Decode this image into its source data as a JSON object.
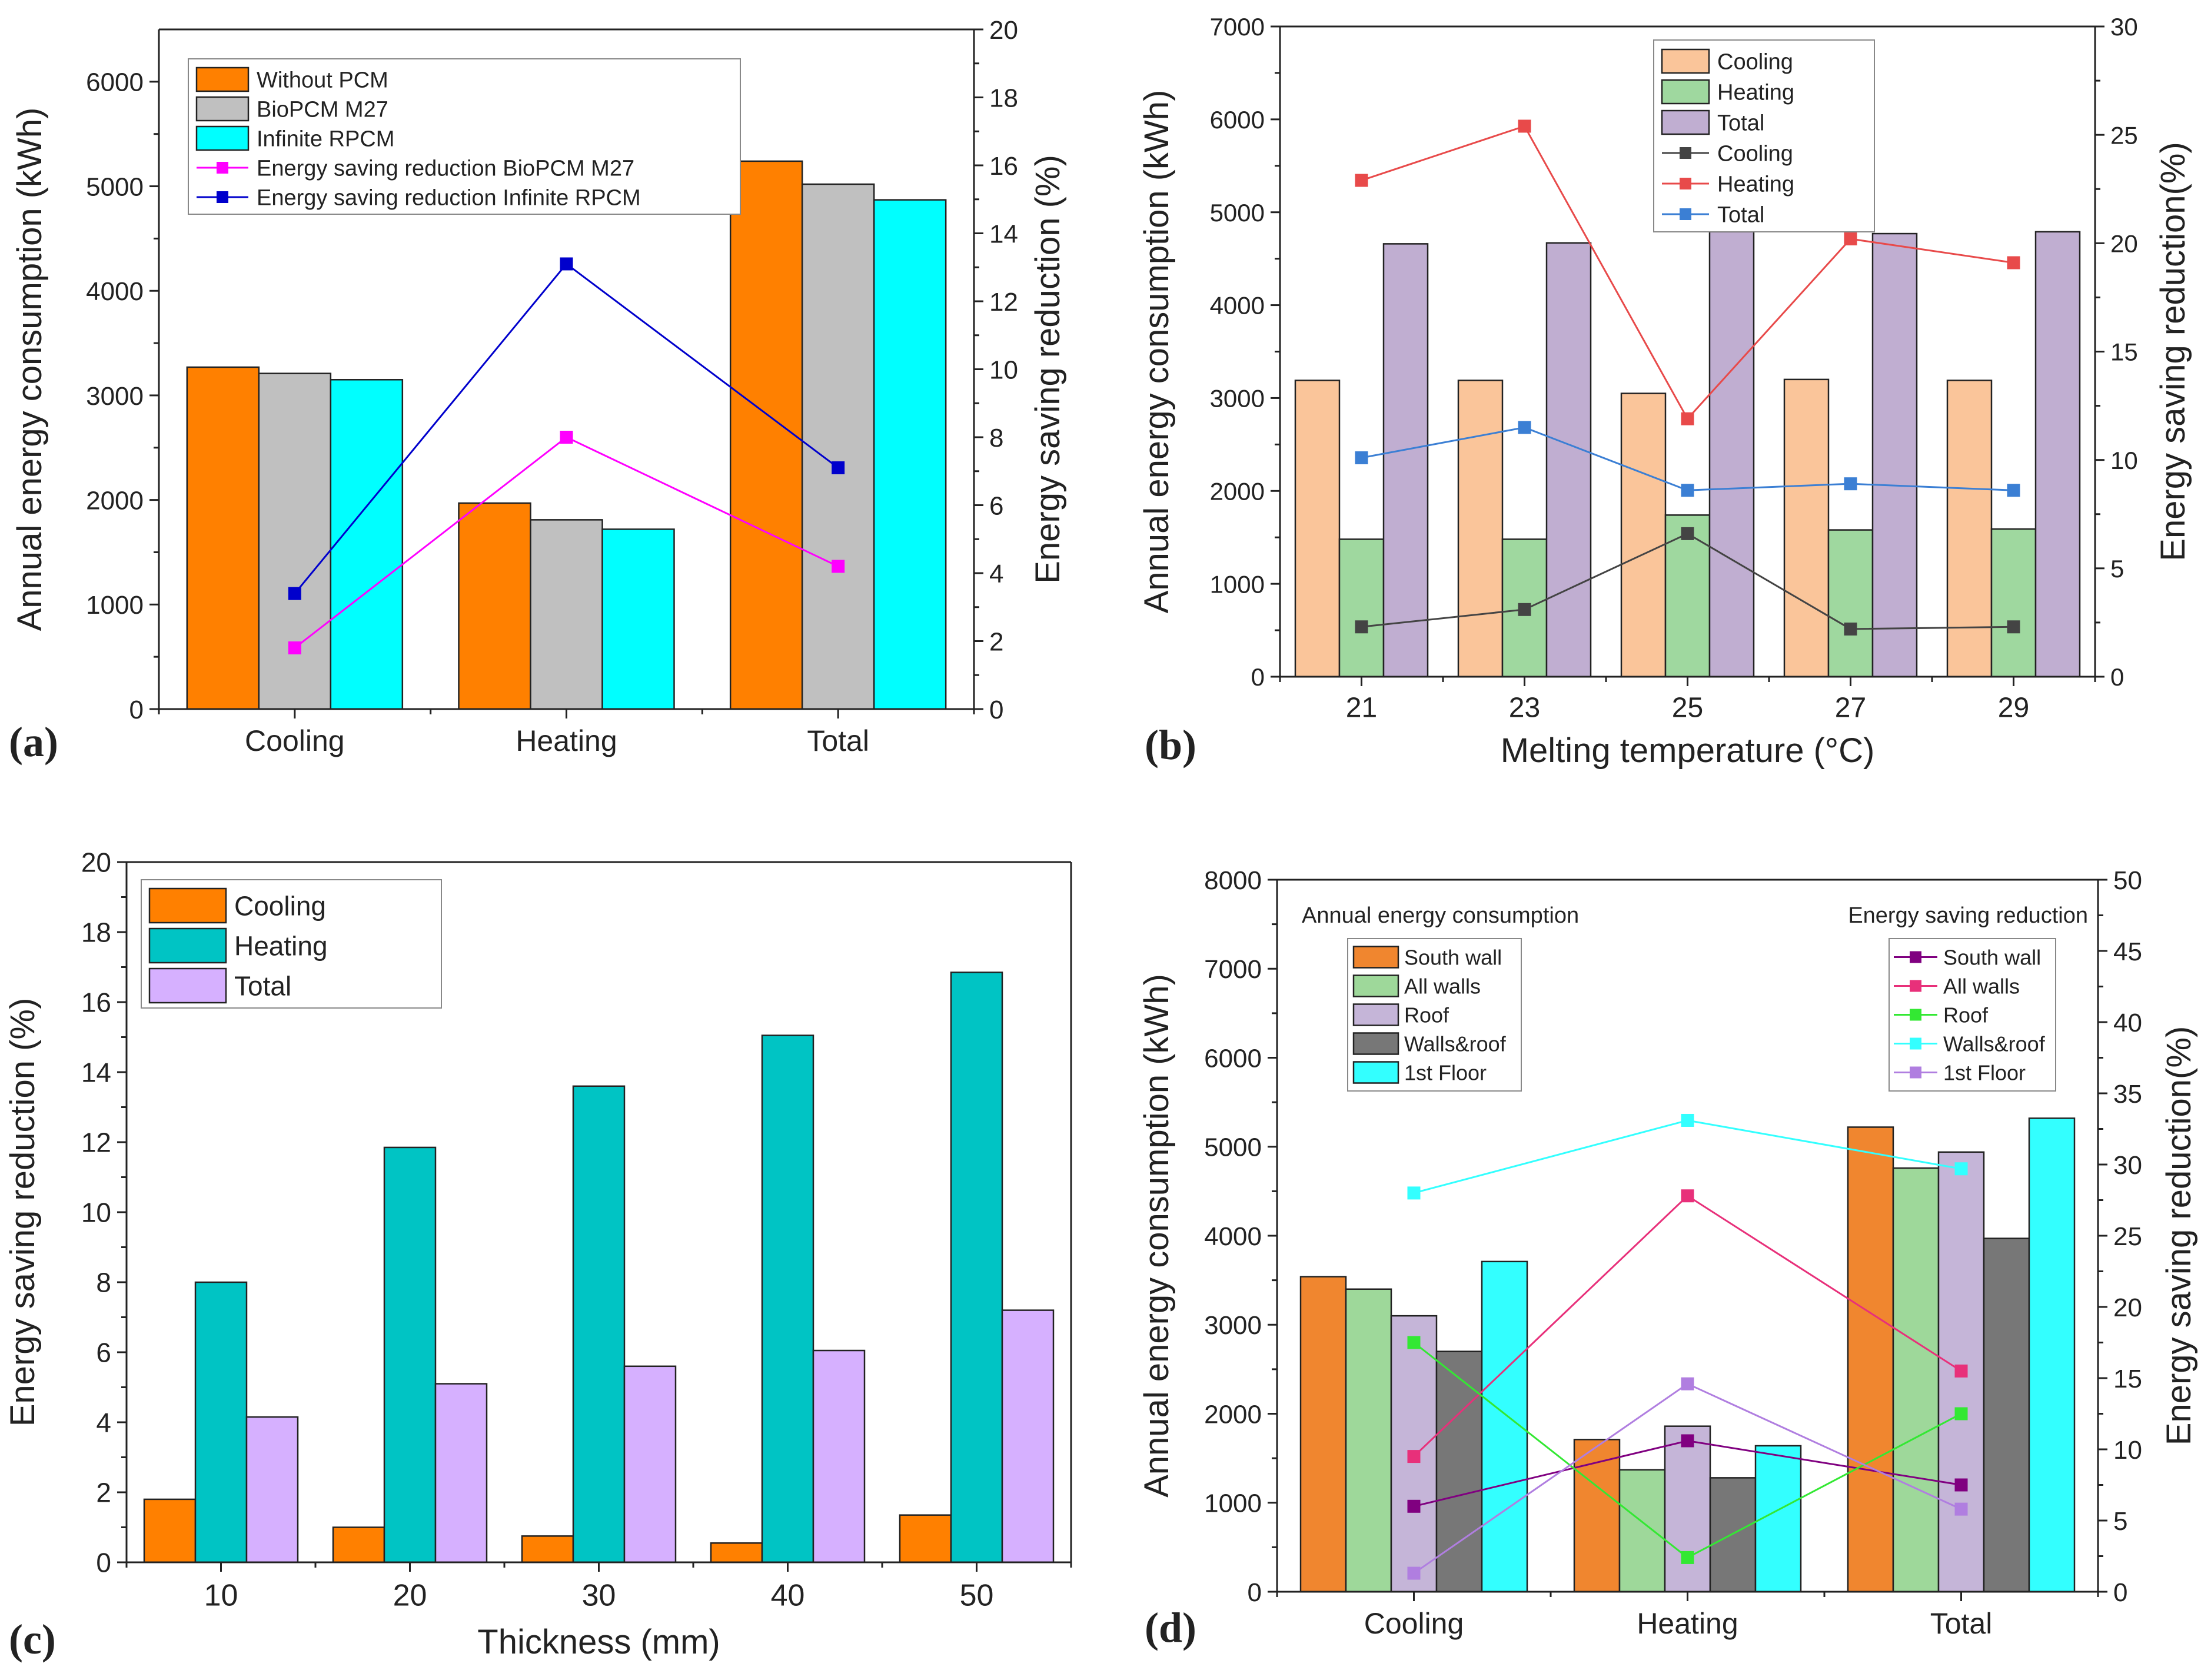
{
  "chart_data": [
    {
      "id": "a",
      "panel_label": "(a)",
      "type": "bar",
      "categories": [
        "Cooling",
        "Heating",
        "Total"
      ],
      "ylabel": "Annual energy consumption (kWh)",
      "y2label": "Energy saving reduction (%)",
      "ylim": [
        0,
        6500
      ],
      "yticks": [
        0,
        1000,
        2000,
        3000,
        4000,
        5000,
        6000
      ],
      "y2lim": [
        0,
        20
      ],
      "y2ticks": [
        0,
        2,
        4,
        6,
        8,
        10,
        12,
        14,
        16,
        18,
        20
      ],
      "legend_position": "top-left",
      "series": [
        {
          "name": "Without PCM",
          "kind": "bar",
          "color": "#ff8000",
          "values": [
            3270,
            1970,
            5240
          ]
        },
        {
          "name": "BioPCM M27",
          "kind": "bar",
          "color": "#c0c0c0",
          "values": [
            3210,
            1810,
            5020
          ]
        },
        {
          "name": "Infinite RPCM",
          "kind": "bar",
          "color": "#00ffff",
          "values": [
            3150,
            1720,
            4870
          ]
        },
        {
          "name": "Energy saving reduction BioPCM M27",
          "kind": "line",
          "axis": "right",
          "color": "#ff00ff",
          "values": [
            1.8,
            8.0,
            4.2
          ]
        },
        {
          "name": "Energy saving reduction Infinite RPCM",
          "kind": "line",
          "axis": "right",
          "color": "#0000cc",
          "values": [
            3.4,
            13.1,
            7.1
          ]
        }
      ]
    },
    {
      "id": "b",
      "panel_label": "(b)",
      "type": "bar",
      "categories": [
        "21",
        "23",
        "25",
        "27",
        "29"
      ],
      "xlabel": "Melting temperature (°C)",
      "ylabel": "Annual energy consumption (kWh)",
      "y2label": "Energy saving reduction(%)",
      "ylim": [
        0,
        7000
      ],
      "yticks": [
        0,
        1000,
        2000,
        3000,
        4000,
        5000,
        6000,
        7000
      ],
      "y2lim": [
        0,
        30
      ],
      "y2ticks": [
        0,
        5,
        10,
        15,
        20,
        25,
        30
      ],
      "legend_position": "top-center",
      "series": [
        {
          "name": "Cooling",
          "kind": "bar",
          "color": "#fac59a",
          "values": [
            3190,
            3190,
            3050,
            3200,
            3190
          ]
        },
        {
          "name": "Heating",
          "kind": "bar",
          "color": "#9fd89f",
          "values": [
            1480,
            1480,
            1740,
            1580,
            1590
          ]
        },
        {
          "name": "Total",
          "kind": "bar",
          "color": "#c0aed1",
          "values": [
            4660,
            4670,
            4790,
            4770,
            4790
          ]
        },
        {
          "name": "Cooling",
          "kind": "line",
          "axis": "right",
          "color": "#444444",
          "values": [
            2.3,
            3.1,
            6.6,
            2.2,
            2.3
          ]
        },
        {
          "name": "Heating",
          "kind": "line",
          "axis": "right",
          "color": "#e84a4a",
          "values": [
            22.9,
            25.4,
            11.9,
            20.2,
            19.1
          ]
        },
        {
          "name": "Total",
          "kind": "line",
          "axis": "right",
          "color": "#3b7fd4",
          "values": [
            10.1,
            11.5,
            8.6,
            8.9,
            8.6
          ]
        }
      ]
    },
    {
      "id": "c",
      "panel_label": "(c)",
      "type": "bar",
      "categories": [
        "10",
        "20",
        "30",
        "40",
        "50"
      ],
      "xlabel": "Thickness (mm)",
      "ylabel": "Energy saving reduction (%)",
      "ylim": [
        0,
        20
      ],
      "yticks": [
        0,
        2,
        4,
        6,
        8,
        10,
        12,
        14,
        16,
        18,
        20
      ],
      "legend_position": "top-left",
      "series": [
        {
          "name": "Cooling",
          "kind": "bar",
          "color": "#ff8000",
          "values": [
            1.8,
            1.0,
            0.75,
            0.55,
            1.35
          ]
        },
        {
          "name": "Heating",
          "kind": "bar",
          "color": "#00c4c4",
          "values": [
            8.0,
            11.85,
            13.6,
            15.05,
            16.85
          ]
        },
        {
          "name": "Total",
          "kind": "bar",
          "color": "#d6b0ff",
          "values": [
            4.15,
            5.1,
            5.6,
            6.05,
            7.2
          ]
        }
      ]
    },
    {
      "id": "d",
      "panel_label": "(d)",
      "type": "bar",
      "categories": [
        "Cooling",
        "Heating",
        "Total"
      ],
      "ylabel": "Annual energy consumption (kWh)",
      "y2label": "Energy saving reduction(%)",
      "ylim": [
        0,
        8000
      ],
      "yticks": [
        0,
        1000,
        2000,
        3000,
        4000,
        5000,
        6000,
        7000,
        8000
      ],
      "y2lim": [
        0,
        50
      ],
      "y2ticks": [
        0,
        5,
        10,
        15,
        20,
        25,
        30,
        35,
        40,
        45,
        50
      ],
      "annotations": [
        "Annual energy consumption",
        "Energy saving reduction"
      ],
      "legend_position": "top-left and top-right",
      "series": [
        {
          "name": "South wall",
          "kind": "bar",
          "color": "#f0862f",
          "values": [
            3540,
            1710,
            5220
          ]
        },
        {
          "name": "All walls",
          "kind": "bar",
          "color": "#9ed89a",
          "values": [
            3400,
            1370,
            4760
          ]
        },
        {
          "name": "Roof",
          "kind": "bar",
          "color": "#c5b5d8",
          "values": [
            3100,
            1860,
            4940
          ]
        },
        {
          "name": "Walls&roof",
          "kind": "bar",
          "color": "#777777",
          "values": [
            2700,
            1280,
            3970
          ]
        },
        {
          "name": "1st Floor",
          "kind": "bar",
          "color": "#33ffff",
          "values": [
            3710,
            1640,
            5320
          ]
        },
        {
          "name": "South wall",
          "kind": "line",
          "axis": "right",
          "color": "#800080",
          "values": [
            6.0,
            10.6,
            7.5
          ]
        },
        {
          "name": "All walls",
          "kind": "line",
          "axis": "right",
          "color": "#e8307a",
          "values": [
            9.5,
            27.8,
            15.5
          ]
        },
        {
          "name": "Roof",
          "kind": "line",
          "axis": "right",
          "color": "#33e833",
          "values": [
            17.5,
            2.4,
            12.5
          ]
        },
        {
          "name": "Walls&roof",
          "kind": "line",
          "axis": "right",
          "color": "#33ffff",
          "values": [
            28.0,
            33.1,
            29.7
          ]
        },
        {
          "name": "1st Floor",
          "kind": "line",
          "axis": "right",
          "color": "#b07ee0",
          "values": [
            1.3,
            14.6,
            5.8
          ]
        }
      ]
    }
  ]
}
